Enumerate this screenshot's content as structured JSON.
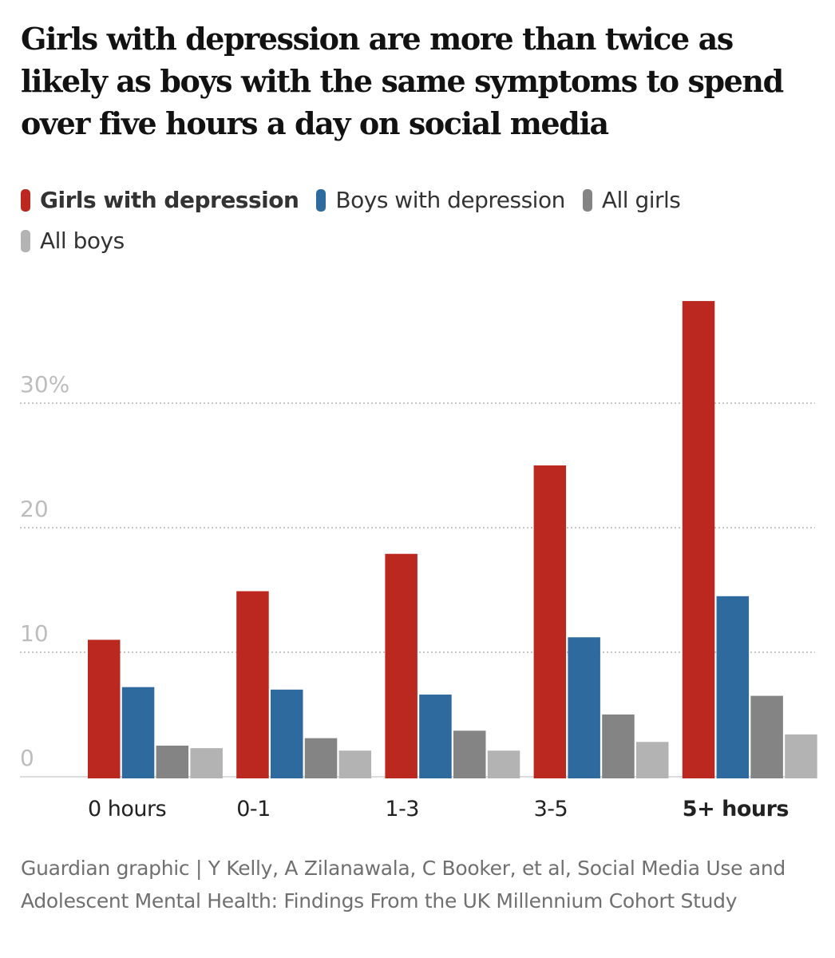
{
  "chart_data": {
    "type": "bar",
    "title": "Girls with depression are more than twice as likely as boys with the same symptoms to spend over five hours a day on social media",
    "xlabel": "",
    "ylabel": "",
    "categories": [
      "0 hours",
      "0-1",
      "1-3",
      "3-5",
      "5+ hours"
    ],
    "highlight_category": "5+ hours",
    "series": [
      {
        "name": "Girls with depression",
        "color": "#bb2820",
        "bold": true,
        "values": [
          11.0,
          14.9,
          17.9,
          25.0,
          38.2
        ]
      },
      {
        "name": "Boys with depression",
        "color": "#2e6a9e",
        "bold": false,
        "values": [
          7.2,
          7.0,
          6.6,
          11.2,
          14.5
        ]
      },
      {
        "name": "All girls",
        "color": "#848484",
        "bold": false,
        "values": [
          2.5,
          3.1,
          3.7,
          5.0,
          6.5
        ]
      },
      {
        "name": "All boys",
        "color": "#b3b3b3",
        "bold": false,
        "values": [
          2.3,
          2.1,
          2.1,
          2.8,
          3.4
        ]
      }
    ],
    "yticks": [
      0,
      10,
      20,
      30
    ],
    "ytick_labels": [
      "0",
      "10",
      "20",
      "30%"
    ],
    "ylim": [
      0,
      38.2
    ],
    "grid": true,
    "legend_position": "top-left",
    "source": "Guardian graphic | Y Kelly, A Zilanawala, C Booker, et al, Social Media Use and Adolescent Mental Health: Findings From the UK Millennium Cohort Study"
  }
}
